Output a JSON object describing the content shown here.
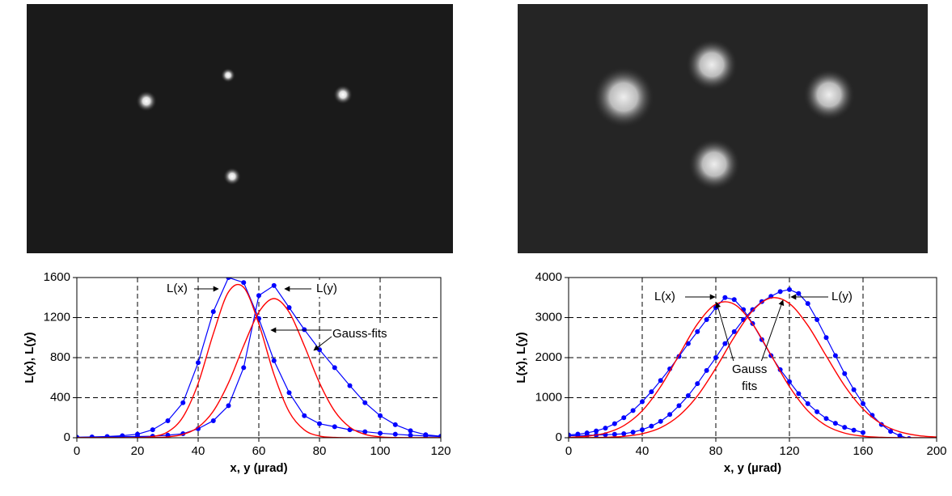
{
  "chart_data": [
    {
      "type": "line",
      "xlabel": "x, y (µrad)",
      "ylabel": "L(x), L(y)",
      "x": [
        0,
        5,
        10,
        15,
        20,
        25,
        30,
        35,
        40,
        45,
        50,
        55,
        60,
        65,
        70,
        75,
        80,
        85,
        90,
        95,
        100,
        105,
        110,
        115,
        120
      ],
      "xlim": [
        0,
        120
      ],
      "xticks": [
        0,
        20,
        40,
        60,
        80,
        100,
        120
      ],
      "ylim": [
        0,
        1600
      ],
      "yticks": [
        0,
        400,
        800,
        1200,
        1600
      ],
      "grid": true,
      "series": [
        {
          "color": "#0000ff",
          "markers": true,
          "values": [
            5,
            8,
            12,
            20,
            35,
            80,
            170,
            350,
            750,
            1260,
            1600,
            1550,
            1190,
            770,
            450,
            220,
            140,
            110,
            80,
            60,
            45,
            35,
            25,
            18,
            12
          ]
        },
        {
          "color": "#0000ff",
          "markers": true,
          "values": [
            3,
            5,
            8,
            10,
            12,
            15,
            25,
            40,
            90,
            170,
            320,
            700,
            1420,
            1520,
            1300,
            1080,
            880,
            700,
            520,
            350,
            220,
            130,
            70,
            30,
            15
          ]
        },
        {
          "color": "#ff0000",
          "markers": false,
          "values": [
            0,
            0,
            0,
            0,
            2,
            12,
            59,
            208,
            543,
            1039,
            1456,
            1502,
            1138,
            633,
            259,
            78,
            17,
            3,
            0,
            0,
            0,
            0,
            0,
            0,
            0
          ]
        },
        {
          "color": "#ff0000",
          "markers": false,
          "values": [
            0,
            0,
            0,
            0,
            0,
            2,
            9,
            34,
            105,
            266,
            548,
            919,
            1254,
            1390,
            1254,
            919,
            548,
            266,
            105,
            34,
            9,
            2,
            0,
            0,
            0
          ]
        }
      ],
      "annotations": [
        {
          "text": "L(x)"
        },
        {
          "text": "L(y)"
        },
        {
          "text": "Gauss-fits"
        }
      ]
    },
    {
      "type": "line",
      "xlabel": "x, y (µrad)",
      "ylabel": "L(x), L(y)",
      "x": [
        0,
        5,
        10,
        15,
        20,
        25,
        30,
        35,
        40,
        45,
        50,
        55,
        60,
        65,
        70,
        75,
        80,
        85,
        90,
        95,
        100,
        105,
        110,
        115,
        120,
        125,
        130,
        135,
        140,
        145,
        150,
        155,
        160,
        165,
        170,
        175,
        180,
        185,
        190,
        195,
        200
      ],
      "xlim": [
        0,
        200
      ],
      "xticks": [
        0,
        40,
        80,
        120,
        160,
        200
      ],
      "ylim": [
        0,
        4000
      ],
      "yticks": [
        0,
        1000,
        2000,
        3000,
        4000
      ],
      "grid": true,
      "series": [
        {
          "color": "#0000ff",
          "markers": true,
          "values": [
            70,
            90,
            120,
            170,
            240,
            350,
            500,
            680,
            900,
            1150,
            1430,
            1720,
            2030,
            2350,
            2650,
            2950,
            3250,
            3500,
            3450,
            3200,
            2850,
            2450,
            2050,
            1700,
            1400,
            1100,
            850,
            650,
            480,
            360,
            260,
            190,
            130,
            null,
            null,
            null,
            null,
            null,
            null,
            null,
            null
          ]
        },
        {
          "color": "#0000ff",
          "markers": true,
          "values": [
            50,
            55,
            60,
            65,
            75,
            85,
            100,
            140,
            200,
            290,
            410,
            580,
            800,
            1050,
            1350,
            1680,
            2000,
            2350,
            2650,
            2950,
            3200,
            3400,
            3530,
            3650,
            3700,
            3600,
            3350,
            2950,
            2500,
            2050,
            1600,
            1200,
            850,
            560,
            330,
            160,
            50,
            -20,
            null,
            null,
            null
          ]
        },
        {
          "color": "#ff0000",
          "markers": false,
          "x": [
            0,
            10,
            20,
            30,
            40,
            50,
            60,
            70,
            80,
            90,
            100,
            110,
            120,
            130,
            140,
            150,
            160,
            170,
            180,
            190,
            200
          ],
          "values": [
            10,
            38,
            116,
            302,
            673,
            1278,
            2062,
            2840,
            3333,
            3333,
            2840,
            2062,
            1278,
            673,
            302,
            116,
            38,
            10,
            2,
            0,
            0
          ]
        },
        {
          "color": "#ff0000",
          "markers": false,
          "x": [
            0,
            10,
            20,
            30,
            40,
            50,
            60,
            70,
            80,
            90,
            100,
            110,
            120,
            130,
            140,
            150,
            160,
            170,
            180,
            190,
            200
          ],
          "values": [
            1,
            3,
            10,
            35,
            100,
            250,
            550,
            1044,
            1737,
            2512,
            3171,
            3490,
            3350,
            2804,
            2042,
            1298,
            720,
            347,
            147,
            54,
            17
          ]
        }
      ],
      "annotations": [
        {
          "text": "L(x)"
        },
        {
          "text": "L(y)"
        },
        {
          "text": "Gauss\nfits"
        }
      ]
    }
  ]
}
